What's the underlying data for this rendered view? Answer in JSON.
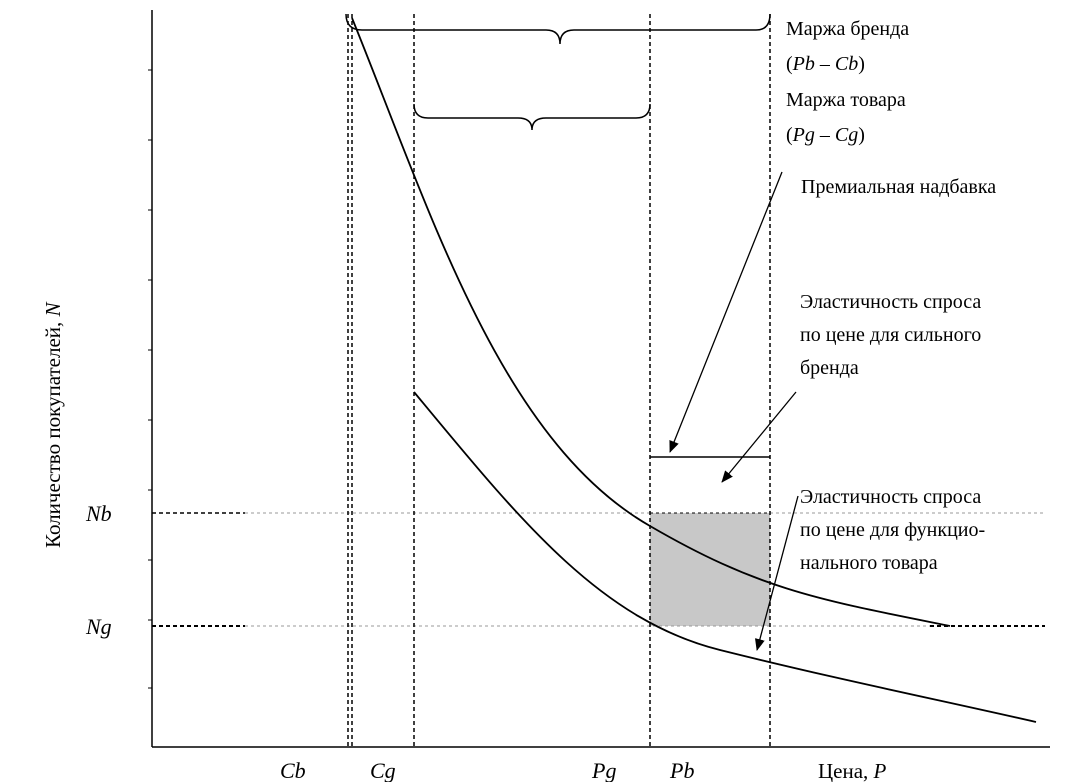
{
  "axes": {
    "y_label": "Количество покупателей,",
    "y_symbol": "N",
    "x_label": "Цена,",
    "x_symbol": "P"
  },
  "ticks": {
    "x": [
      "Cb",
      "Cg",
      "Pg",
      "Pb"
    ],
    "y": [
      "Nb",
      "Ng"
    ]
  },
  "annotations": {
    "brand_margin": {
      "line1": "Маржа бренда",
      "line2_open": "(",
      "line2_a": "Pb",
      "line2_dash": " – ",
      "line2_b": "Cb",
      "line2_close": ")"
    },
    "goods_margin": {
      "line1": "Маржа товара",
      "line2_open": "(",
      "line2_a": "Pg",
      "line2_dash": " – ",
      "line2_b": "Cg",
      "line2_close": ")"
    },
    "premium": "Премиальная надбавка",
    "strong_brand": [
      "Эластичность спроса",
      "по цене для сильного",
      "бренда"
    ],
    "functional": [
      "Эластичность спроса",
      "по цене для функцио-",
      "нального товара"
    ]
  },
  "colors": {
    "shade": "#c8c8c8",
    "grid": "#999999",
    "ink": "#000000"
  }
}
